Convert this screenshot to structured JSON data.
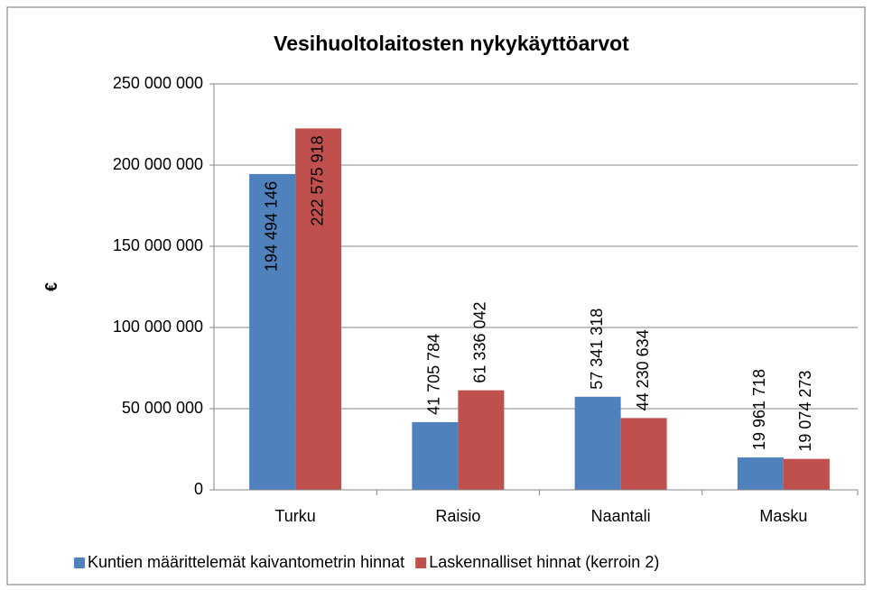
{
  "chart_data": {
    "type": "bar",
    "title": "Vesihuoltolaitosten nykykäyttöarvot",
    "y_label": "€",
    "categories": [
      "Turku",
      "Raisio",
      "Naantali",
      "Masku"
    ],
    "series": [
      {
        "name": "Kuntien määrittelemät kaivantometrin hinnat",
        "color": "#4f81bd",
        "values": [
          194494146,
          41705784,
          57341318,
          19961718
        ],
        "value_labels": [
          "194 494 146",
          "41 705 784",
          "57 341 318",
          "19 961 718"
        ]
      },
      {
        "name": "Laskennalliset hinnat (kerroin 2)",
        "color": "#c0504d",
        "values": [
          222575918,
          61336042,
          44230634,
          19074273
        ],
        "value_labels": [
          "222 575 918",
          "61 336 042",
          "44 230 634",
          "19 074 273"
        ]
      }
    ],
    "ylim": [
      0,
      250000000
    ],
    "yticks": [
      0,
      {
        "value": 50000000,
        "label": "50 000 000"
      },
      {
        "value": 100000000,
        "label": "100 000 000"
      },
      {
        "value": 150000000,
        "label": "150 000 000"
      },
      {
        "value": 200000000,
        "label": "200 000 000"
      },
      {
        "value": 250000000,
        "label": "250 000 000"
      }
    ],
    "grid": true,
    "legend": "bottom"
  }
}
